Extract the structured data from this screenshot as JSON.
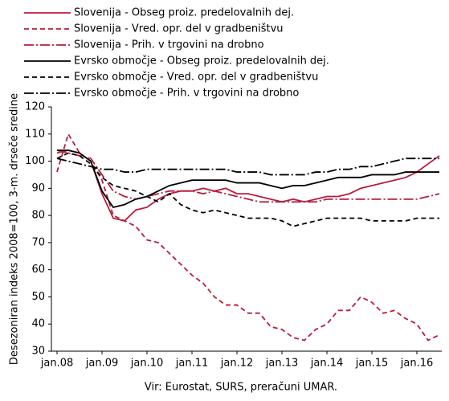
{
  "chart_data": {
    "type": "line",
    "y_label": "Desezoniran indeks 2008=100, 3-m. drseče sredine",
    "source": "Vir: Eurostat, SURS, preračuni UMAR.",
    "categories": [
      "jan.08",
      null,
      null,
      null,
      "jan.09",
      null,
      null,
      null,
      "jan.10",
      null,
      null,
      null,
      "jan.11",
      null,
      null,
      null,
      "jan.12",
      null,
      null,
      null,
      "jan.13",
      null,
      null,
      null,
      "jan.14",
      null,
      null,
      null,
      "jan.15",
      null,
      null,
      null,
      "jan.16",
      null,
      null
    ],
    "series": [
      {
        "name": "Slovenija -  Obseg proiz. predelovalnih dej.",
        "color": "#b81c3c",
        "dash": "solid",
        "values": [
          103,
          104,
          103,
          100,
          88,
          79,
          78,
          82,
          83,
          86,
          88,
          89,
          89,
          90,
          89,
          90,
          88,
          88,
          87,
          86,
          85,
          86,
          85,
          86,
          87,
          87,
          88,
          90,
          91,
          92,
          93,
          94,
          96,
          99,
          102
        ]
      },
      {
        "name": "Slovenija -  Vred. opr. del v gradbeništvu",
        "color": "#b81c3c",
        "dash": "dashed",
        "values": [
          96,
          110,
          103,
          100,
          93,
          80,
          78,
          76,
          71,
          70,
          66,
          62,
          58,
          55,
          50,
          47,
          47,
          44,
          44,
          39,
          38,
          35,
          34,
          38,
          40,
          45,
          45,
          50,
          48,
          44,
          45,
          42,
          40,
          34,
          36
        ]
      },
      {
        "name": "Slovenija -  Prih. v trgovini na drobno",
        "color": "#b81c3c",
        "dash": "dashdot",
        "values": [
          104,
          103,
          102,
          101,
          95,
          89,
          87,
          86,
          87,
          88,
          89,
          89,
          89,
          88,
          89,
          88,
          87,
          86,
          85,
          85,
          85,
          85,
          85,
          85,
          86,
          86,
          86,
          86,
          86,
          86,
          86,
          86,
          86,
          87,
          88
        ]
      },
      {
        "name": "Evrsko območje -  Obseg proiz. predelovalnih dej.",
        "color": "#000000",
        "dash": "solid",
        "values": [
          104,
          104,
          103,
          100,
          89,
          83,
          84,
          86,
          87,
          89,
          91,
          92,
          93,
          93,
          93,
          93,
          92,
          92,
          92,
          91,
          90,
          91,
          91,
          92,
          93,
          94,
          94,
          94,
          95,
          95,
          95,
          96,
          96,
          96,
          96
        ]
      },
      {
        "name": "Evrsko območje -  Vred. opr. del v gradbeništvu",
        "color": "#000000",
        "dash": "dashed",
        "values": [
          101,
          103,
          102,
          99,
          94,
          91,
          90,
          89,
          87,
          85,
          88,
          84,
          82,
          81,
          82,
          81,
          80,
          79,
          79,
          79,
          78,
          76,
          77,
          78,
          79,
          79,
          79,
          79,
          78,
          78,
          78,
          78,
          79,
          79,
          79
        ]
      },
      {
        "name": "Evrsko območje -  Prih. v trgovini na drobno",
        "color": "#000000",
        "dash": "dashdot",
        "values": [
          101,
          100,
          99,
          98,
          97,
          97,
          96,
          96,
          97,
          97,
          97,
          97,
          97,
          97,
          97,
          97,
          96,
          96,
          96,
          95,
          95,
          95,
          95,
          96,
          96,
          97,
          97,
          98,
          98,
          99,
          100,
          101,
          101,
          101,
          101
        ]
      }
    ],
    "ylim": [
      30,
      120
    ],
    "yticks": [
      30,
      40,
      50,
      60,
      70,
      80,
      90,
      100,
      110,
      120
    ]
  }
}
